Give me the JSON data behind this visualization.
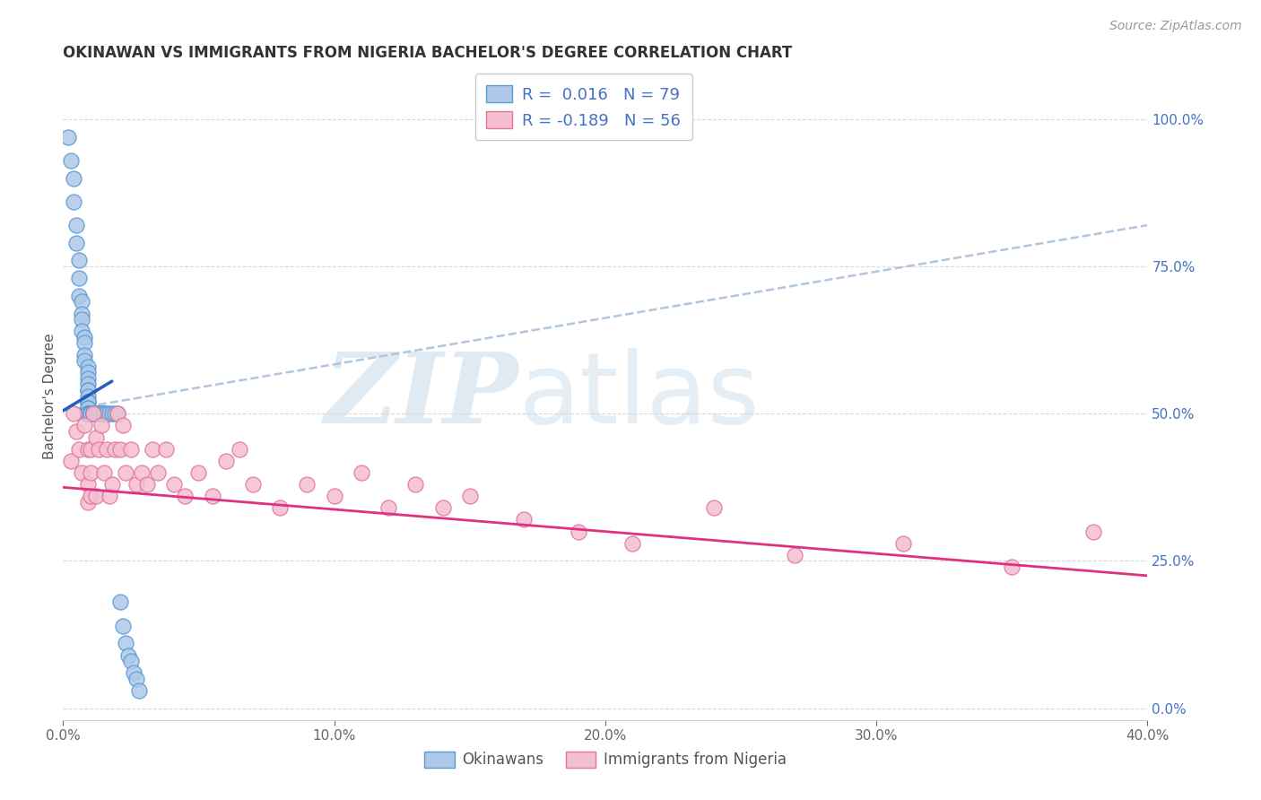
{
  "title": "OKINAWAN VS IMMIGRANTS FROM NIGERIA BACHELOR'S DEGREE CORRELATION CHART",
  "source": "Source: ZipAtlas.com",
  "ylabel": "Bachelor's Degree",
  "xlim": [
    0.0,
    0.4
  ],
  "ylim": [
    -0.02,
    1.08
  ],
  "ytick_vals": [
    0.0,
    0.25,
    0.5,
    0.75,
    1.0
  ],
  "ytick_labels": [
    "0.0%",
    "25.0%",
    "50.0%",
    "75.0%",
    "100.0%"
  ],
  "xtick_vals": [
    0.0,
    0.1,
    0.2,
    0.3,
    0.4
  ],
  "xtick_labels": [
    "0.0%",
    "10.0%",
    "20.0%",
    "30.0%",
    "40.0%"
  ],
  "r1": "0.016",
  "n1": "79",
  "r2": "-0.189",
  "n2": "56",
  "blue_face": "#aec8e8",
  "blue_edge": "#5b9bd5",
  "pink_face": "#f5bfd0",
  "pink_edge": "#e07898",
  "blue_line_color": "#2060c0",
  "pink_line_color": "#e03080",
  "dashed_color": "#aac0d8",
  "tick_color_y": "#4472c4",
  "tick_color_x": "#666666",
  "grid_color": "#d8d8d8",
  "title_color": "#333333",
  "source_color": "#999999",
  "label_color": "#555555",
  "okinawan_x": [
    0.002,
    0.003,
    0.004,
    0.004,
    0.005,
    0.005,
    0.006,
    0.006,
    0.006,
    0.007,
    0.007,
    0.007,
    0.007,
    0.008,
    0.008,
    0.008,
    0.008,
    0.009,
    0.009,
    0.009,
    0.009,
    0.009,
    0.009,
    0.009,
    0.009,
    0.009,
    0.009,
    0.009,
    0.009,
    0.009,
    0.009,
    0.009,
    0.009,
    0.009,
    0.009,
    0.009,
    0.009,
    0.009,
    0.01,
    0.01,
    0.01,
    0.01,
    0.01,
    0.01,
    0.01,
    0.01,
    0.01,
    0.01,
    0.011,
    0.011,
    0.011,
    0.011,
    0.011,
    0.012,
    0.012,
    0.012,
    0.012,
    0.012,
    0.013,
    0.013,
    0.013,
    0.013,
    0.014,
    0.015,
    0.015,
    0.015,
    0.016,
    0.017,
    0.018,
    0.019,
    0.02,
    0.021,
    0.022,
    0.023,
    0.024,
    0.025,
    0.026,
    0.027,
    0.028
  ],
  "okinawan_y": [
    0.97,
    0.93,
    0.9,
    0.86,
    0.82,
    0.79,
    0.76,
    0.73,
    0.7,
    0.69,
    0.67,
    0.66,
    0.64,
    0.63,
    0.62,
    0.6,
    0.59,
    0.58,
    0.57,
    0.56,
    0.55,
    0.54,
    0.54,
    0.53,
    0.52,
    0.52,
    0.52,
    0.51,
    0.51,
    0.5,
    0.5,
    0.5,
    0.5,
    0.5,
    0.5,
    0.5,
    0.5,
    0.5,
    0.5,
    0.5,
    0.5,
    0.5,
    0.5,
    0.5,
    0.5,
    0.5,
    0.5,
    0.5,
    0.5,
    0.5,
    0.5,
    0.5,
    0.5,
    0.5,
    0.5,
    0.5,
    0.5,
    0.5,
    0.5,
    0.5,
    0.5,
    0.5,
    0.5,
    0.5,
    0.5,
    0.5,
    0.5,
    0.5,
    0.5,
    0.5,
    0.5,
    0.18,
    0.14,
    0.11,
    0.09,
    0.08,
    0.06,
    0.05,
    0.03
  ],
  "nigeria_x": [
    0.003,
    0.004,
    0.005,
    0.006,
    0.007,
    0.008,
    0.009,
    0.009,
    0.009,
    0.01,
    0.01,
    0.01,
    0.011,
    0.012,
    0.012,
    0.013,
    0.014,
    0.015,
    0.016,
    0.017,
    0.018,
    0.019,
    0.02,
    0.021,
    0.022,
    0.023,
    0.025,
    0.027,
    0.029,
    0.031,
    0.033,
    0.035,
    0.038,
    0.041,
    0.045,
    0.05,
    0.055,
    0.06,
    0.065,
    0.07,
    0.08,
    0.09,
    0.1,
    0.11,
    0.12,
    0.13,
    0.14,
    0.15,
    0.17,
    0.19,
    0.21,
    0.24,
    0.27,
    0.31,
    0.35,
    0.38
  ],
  "nigeria_y": [
    0.42,
    0.5,
    0.47,
    0.44,
    0.4,
    0.48,
    0.44,
    0.38,
    0.35,
    0.44,
    0.4,
    0.36,
    0.5,
    0.46,
    0.36,
    0.44,
    0.48,
    0.4,
    0.44,
    0.36,
    0.38,
    0.44,
    0.5,
    0.44,
    0.48,
    0.4,
    0.44,
    0.38,
    0.4,
    0.38,
    0.44,
    0.4,
    0.44,
    0.38,
    0.36,
    0.4,
    0.36,
    0.42,
    0.44,
    0.38,
    0.34,
    0.38,
    0.36,
    0.4,
    0.34,
    0.38,
    0.34,
    0.36,
    0.32,
    0.3,
    0.28,
    0.34,
    0.26,
    0.28,
    0.24,
    0.3
  ],
  "blue_line_x": [
    0.0,
    0.018
  ],
  "blue_line_y": [
    0.505,
    0.555
  ],
  "dash_line_x": [
    0.0,
    0.4
  ],
  "dash_line_y": [
    0.505,
    0.82
  ],
  "pink_line_x": [
    0.0,
    0.4
  ],
  "pink_line_y": [
    0.375,
    0.225
  ]
}
